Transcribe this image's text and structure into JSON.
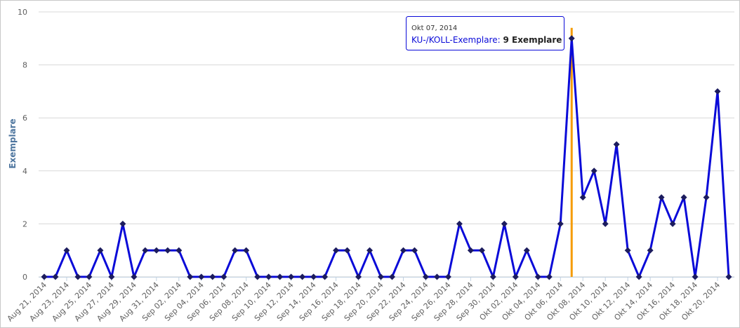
{
  "chart_data": {
    "type": "line",
    "y_label": "Exemplare",
    "categories": [
      "Aug 21, 2014",
      null,
      "Aug 23, 2014",
      null,
      "Aug 25, 2014",
      null,
      "Aug 27, 2014",
      null,
      "Aug 29, 2014",
      null,
      "Aug 31, 2014",
      null,
      "Sep 02, 2014",
      null,
      "Sep 04, 2014",
      null,
      "Sep 06, 2014",
      null,
      "Sep 08, 2014",
      null,
      "Sep 10, 2014",
      null,
      "Sep 12, 2014",
      null,
      "Sep 14, 2014",
      null,
      "Sep 16, 2014",
      null,
      "Sep 18, 2014",
      null,
      "Sep 20, 2014",
      null,
      "Sep 22, 2014",
      null,
      "Sep 24, 2014",
      null,
      "Sep 26, 2014",
      null,
      "Sep 28, 2014",
      null,
      "Sep 30, 2014",
      null,
      "Okt 02, 2014",
      null,
      "Okt 04, 2014",
      null,
      "Okt 06, 2014",
      null,
      "Okt 08, 2014",
      null,
      "Okt 10, 2014",
      null,
      "Okt 12, 2014",
      null,
      "Okt 14, 2014",
      null,
      "Okt 16, 2014",
      null,
      "Okt 18, 2014",
      null,
      "Okt 20, 2014",
      null
    ],
    "series": [
      {
        "name": "KU-/KOLL-Exemplare",
        "color": "#0a0ad8",
        "marker_color": "#1c1c5e",
        "values": [
          0,
          0,
          1,
          0,
          0,
          1,
          0,
          2,
          0,
          1,
          1,
          1,
          1,
          0,
          0,
          0,
          0,
          1,
          1,
          0,
          0,
          0,
          0,
          0,
          0,
          0,
          1,
          1,
          0,
          1,
          0,
          0,
          1,
          1,
          0,
          0,
          0,
          2,
          1,
          1,
          0,
          2,
          0,
          1,
          0,
          0,
          2,
          9,
          3,
          4,
          2,
          5,
          1,
          0,
          1,
          3,
          2,
          3,
          0,
          3,
          7,
          0
        ]
      }
    ],
    "ylim": [
      0,
      10
    ],
    "yticks": [
      0,
      2,
      4,
      6,
      8,
      10
    ],
    "grid": true,
    "crosshair_color": "#f59b00",
    "tooltip": {
      "date": "Okt 07, 2014",
      "series_label": "KU-/KOLL-Exemplare:",
      "value_text": "9 Exemplare"
    }
  }
}
